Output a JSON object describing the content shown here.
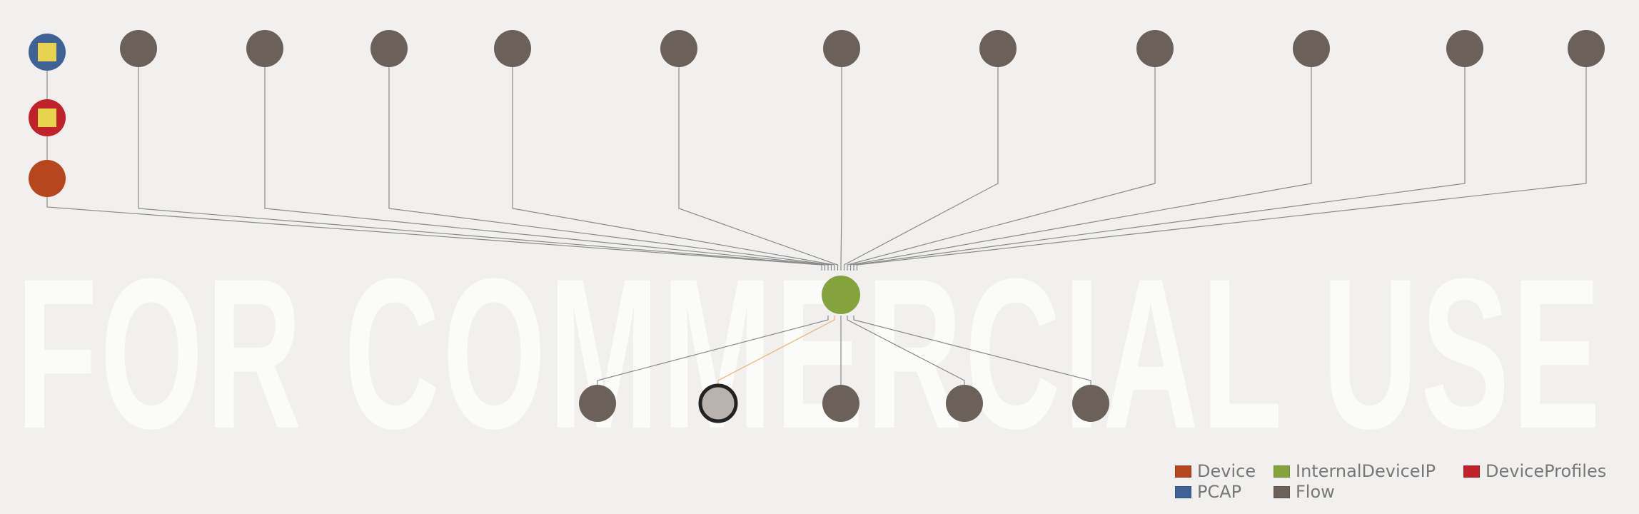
{
  "watermark": {
    "text": "T FOR COMMERCIAL USE"
  },
  "colors": {
    "Device": "#b5461d",
    "InternalDeviceIP": "#84a33d",
    "DeviceProfiles": "#c2202b",
    "PCAP": "#3f6296",
    "Flow": "#6b605a",
    "edge": "#8a8a8a",
    "highlight_edge": "#e7bd8a",
    "inner_square": "#e8d34f",
    "selected_fill": "#b9b2ae",
    "selected_ring": "#222222"
  },
  "legend": [
    {
      "label": "Device",
      "type": "Device"
    },
    {
      "label": "InternalDeviceIP",
      "type": "InternalDeviceIP"
    },
    {
      "label": "DeviceProfiles",
      "type": "DeviceProfiles"
    },
    {
      "label": "PCAP",
      "type": "PCAP"
    },
    {
      "label": "Flow",
      "type": "Flow"
    }
  ],
  "nodes": [
    {
      "id": "pcap",
      "type": "PCAP",
      "icon": "square"
    },
    {
      "id": "profiles",
      "type": "DeviceProfiles",
      "icon": "square"
    },
    {
      "id": "device",
      "type": "Device"
    },
    {
      "id": "ip",
      "type": "InternalDeviceIP"
    },
    {
      "id": "t1",
      "type": "Flow"
    },
    {
      "id": "t2",
      "type": "Flow"
    },
    {
      "id": "t3",
      "type": "Flow"
    },
    {
      "id": "t4",
      "type": "Flow"
    },
    {
      "id": "t5",
      "type": "Flow"
    },
    {
      "id": "t6",
      "type": "Flow"
    },
    {
      "id": "t7",
      "type": "Flow"
    },
    {
      "id": "t8",
      "type": "Flow"
    },
    {
      "id": "t9",
      "type": "Flow"
    },
    {
      "id": "t10",
      "type": "Flow"
    },
    {
      "id": "t11",
      "type": "Flow"
    },
    {
      "id": "b1",
      "type": "Flow"
    },
    {
      "id": "b2",
      "type": "Flow",
      "selected": true
    },
    {
      "id": "b3",
      "type": "Flow"
    },
    {
      "id": "b4",
      "type": "Flow"
    },
    {
      "id": "b5",
      "type": "Flow"
    }
  ],
  "edges": [
    {
      "from": "pcap",
      "to": "profiles"
    },
    {
      "from": "profiles",
      "to": "device"
    },
    {
      "from": "device",
      "to": "ip"
    },
    {
      "from": "t1",
      "to": "ip"
    },
    {
      "from": "t2",
      "to": "ip"
    },
    {
      "from": "t3",
      "to": "ip"
    },
    {
      "from": "t4",
      "to": "ip"
    },
    {
      "from": "t5",
      "to": "ip"
    },
    {
      "from": "t6",
      "to": "ip"
    },
    {
      "from": "t7",
      "to": "ip"
    },
    {
      "from": "t8",
      "to": "ip"
    },
    {
      "from": "t9",
      "to": "ip"
    },
    {
      "from": "t10",
      "to": "ip"
    },
    {
      "from": "t11",
      "to": "ip"
    },
    {
      "from": "ip",
      "to": "b1"
    },
    {
      "from": "ip",
      "to": "b2",
      "highlight": true
    },
    {
      "from": "ip",
      "to": "b3"
    },
    {
      "from": "ip",
      "to": "b4"
    },
    {
      "from": "ip",
      "to": "b5"
    }
  ]
}
